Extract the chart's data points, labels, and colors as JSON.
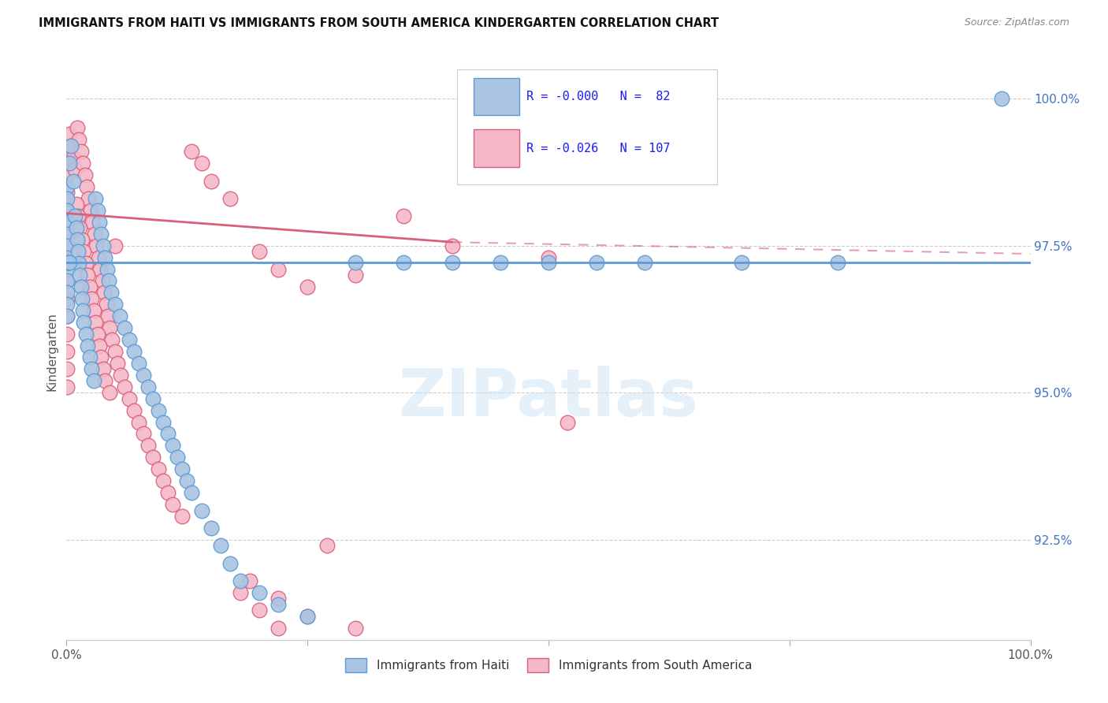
{
  "title": "IMMIGRANTS FROM HAITI VS IMMIGRANTS FROM SOUTH AMERICA KINDERGARTEN CORRELATION CHART",
  "source": "Source: ZipAtlas.com",
  "ylabel": "Kindergarten",
  "ylabel_right_ticks": [
    100.0,
    97.5,
    95.0,
    92.5
  ],
  "ylabel_right_labels": [
    "100.0%",
    "97.5%",
    "95.0%",
    "92.5%"
  ],
  "xmin": 0.0,
  "xmax": 100.0,
  "ymin": 90.8,
  "ymax": 100.6,
  "haiti_color": "#aac4e2",
  "haiti_edge_color": "#5b9bd5",
  "south_america_color": "#f5b8c8",
  "south_america_edge_color": "#d9607a",
  "haiti_R": "-0.000",
  "haiti_N": "82",
  "south_america_R": "-0.026",
  "south_america_N": "107",
  "haiti_line_y": 97.22,
  "sa_trend_x0": 0.0,
  "sa_trend_y0": 98.05,
  "sa_trend_x1": 40.0,
  "sa_trend_y1": 97.56,
  "sa_trend_x1_dashed": 40.0,
  "sa_trend_x2_dashed": 100.0,
  "sa_trend_y1_dashed": 97.56,
  "sa_trend_y2_dashed": 97.36,
  "watermark": "ZIPatlas",
  "legend_label_haiti": "Immigrants from Haiti",
  "legend_label_sa": "Immigrants from South America",
  "haiti_points": [
    [
      0.05,
      98.5
    ],
    [
      0.05,
      98.3
    ],
    [
      0.05,
      98.1
    ],
    [
      0.05,
      97.9
    ],
    [
      0.05,
      97.7
    ],
    [
      0.05,
      97.5
    ],
    [
      0.05,
      97.3
    ],
    [
      0.05,
      97.1
    ],
    [
      0.05,
      96.9
    ],
    [
      0.05,
      96.7
    ],
    [
      0.05,
      96.5
    ],
    [
      0.05,
      96.3
    ],
    [
      0.3,
      98.9
    ],
    [
      0.5,
      99.2
    ],
    [
      0.7,
      98.6
    ],
    [
      0.9,
      98.0
    ],
    [
      1.0,
      97.8
    ],
    [
      1.1,
      97.6
    ],
    [
      1.2,
      97.4
    ],
    [
      1.3,
      97.2
    ],
    [
      1.4,
      97.0
    ],
    [
      1.5,
      96.8
    ],
    [
      1.6,
      96.6
    ],
    [
      1.7,
      96.4
    ],
    [
      1.8,
      96.2
    ],
    [
      2.0,
      96.0
    ],
    [
      2.2,
      95.8
    ],
    [
      2.4,
      95.6
    ],
    [
      2.6,
      95.4
    ],
    [
      2.8,
      95.2
    ],
    [
      3.0,
      98.3
    ],
    [
      3.2,
      98.1
    ],
    [
      3.4,
      97.9
    ],
    [
      3.6,
      97.7
    ],
    [
      3.8,
      97.5
    ],
    [
      4.0,
      97.3
    ],
    [
      4.2,
      97.1
    ],
    [
      4.4,
      96.9
    ],
    [
      4.6,
      96.7
    ],
    [
      5.0,
      96.5
    ],
    [
      5.5,
      96.3
    ],
    [
      6.0,
      96.1
    ],
    [
      6.5,
      95.9
    ],
    [
      7.0,
      95.7
    ],
    [
      7.5,
      95.5
    ],
    [
      8.0,
      95.3
    ],
    [
      8.5,
      95.1
    ],
    [
      9.0,
      94.9
    ],
    [
      9.5,
      94.7
    ],
    [
      10.0,
      94.5
    ],
    [
      10.5,
      94.3
    ],
    [
      11.0,
      94.1
    ],
    [
      11.5,
      93.9
    ],
    [
      12.0,
      93.7
    ],
    [
      12.5,
      93.5
    ],
    [
      13.0,
      93.3
    ],
    [
      14.0,
      93.0
    ],
    [
      15.0,
      92.7
    ],
    [
      16.0,
      92.4
    ],
    [
      0.1,
      97.22
    ],
    [
      0.2,
      97.22
    ],
    [
      0.3,
      97.22
    ],
    [
      17.0,
      92.1
    ],
    [
      18.0,
      91.8
    ],
    [
      20.0,
      91.6
    ],
    [
      22.0,
      91.4
    ],
    [
      25.0,
      91.2
    ],
    [
      30.0,
      97.22
    ],
    [
      35.0,
      97.22
    ],
    [
      40.0,
      97.22
    ],
    [
      45.0,
      97.22
    ],
    [
      50.0,
      97.22
    ],
    [
      55.0,
      97.22
    ],
    [
      60.0,
      97.22
    ],
    [
      70.0,
      97.22
    ],
    [
      80.0,
      97.22
    ],
    [
      97.0,
      100.0
    ]
  ],
  "sa_points": [
    [
      0.05,
      99.0
    ],
    [
      0.05,
      98.7
    ],
    [
      0.05,
      98.4
    ],
    [
      0.05,
      98.1
    ],
    [
      0.05,
      97.8
    ],
    [
      0.05,
      97.5
    ],
    [
      0.05,
      97.2
    ],
    [
      0.05,
      96.9
    ],
    [
      0.05,
      96.6
    ],
    [
      0.05,
      96.3
    ],
    [
      0.05,
      96.0
    ],
    [
      0.05,
      95.7
    ],
    [
      0.05,
      95.4
    ],
    [
      0.05,
      95.1
    ],
    [
      0.3,
      99.4
    ],
    [
      0.5,
      99.2
    ],
    [
      0.7,
      99.0
    ],
    [
      0.9,
      98.8
    ],
    [
      1.1,
      99.5
    ],
    [
      1.3,
      99.3
    ],
    [
      1.5,
      99.1
    ],
    [
      1.7,
      98.9
    ],
    [
      1.9,
      98.7
    ],
    [
      2.1,
      98.5
    ],
    [
      2.3,
      98.3
    ],
    [
      2.5,
      98.1
    ],
    [
      2.7,
      97.9
    ],
    [
      2.9,
      97.7
    ],
    [
      3.1,
      97.5
    ],
    [
      3.3,
      97.3
    ],
    [
      3.5,
      97.1
    ],
    [
      3.7,
      96.9
    ],
    [
      3.9,
      96.7
    ],
    [
      4.1,
      96.5
    ],
    [
      4.3,
      96.3
    ],
    [
      4.5,
      96.1
    ],
    [
      4.7,
      95.9
    ],
    [
      5.0,
      95.7
    ],
    [
      5.3,
      95.5
    ],
    [
      5.6,
      95.3
    ],
    [
      6.0,
      95.1
    ],
    [
      6.5,
      94.9
    ],
    [
      7.0,
      94.7
    ],
    [
      7.5,
      94.5
    ],
    [
      8.0,
      94.3
    ],
    [
      8.5,
      94.1
    ],
    [
      9.0,
      93.9
    ],
    [
      9.5,
      93.7
    ],
    [
      10.0,
      93.5
    ],
    [
      10.5,
      93.3
    ],
    [
      11.0,
      93.1
    ],
    [
      12.0,
      92.9
    ],
    [
      1.0,
      98.2
    ],
    [
      1.2,
      98.0
    ],
    [
      1.4,
      97.8
    ],
    [
      1.6,
      97.6
    ],
    [
      1.8,
      97.4
    ],
    [
      2.0,
      97.2
    ],
    [
      2.2,
      97.0
    ],
    [
      2.4,
      96.8
    ],
    [
      2.6,
      96.6
    ],
    [
      2.8,
      96.4
    ],
    [
      3.0,
      96.2
    ],
    [
      3.2,
      96.0
    ],
    [
      3.4,
      95.8
    ],
    [
      3.6,
      95.6
    ],
    [
      3.8,
      95.4
    ],
    [
      4.0,
      95.2
    ],
    [
      4.5,
      95.0
    ],
    [
      5.0,
      97.5
    ],
    [
      13.0,
      99.1
    ],
    [
      14.0,
      98.9
    ],
    [
      15.0,
      98.6
    ],
    [
      17.0,
      98.3
    ],
    [
      20.0,
      97.4
    ],
    [
      22.0,
      97.1
    ],
    [
      25.0,
      96.8
    ],
    [
      30.0,
      97.0
    ],
    [
      19.0,
      91.8
    ],
    [
      22.0,
      91.5
    ],
    [
      25.0,
      91.2
    ],
    [
      27.0,
      92.4
    ],
    [
      30.0,
      91.0
    ],
    [
      35.0,
      98.0
    ],
    [
      40.0,
      97.5
    ],
    [
      50.0,
      97.3
    ],
    [
      52.0,
      94.5
    ],
    [
      18.0,
      91.6
    ],
    [
      20.0,
      91.3
    ],
    [
      22.0,
      91.0
    ]
  ]
}
